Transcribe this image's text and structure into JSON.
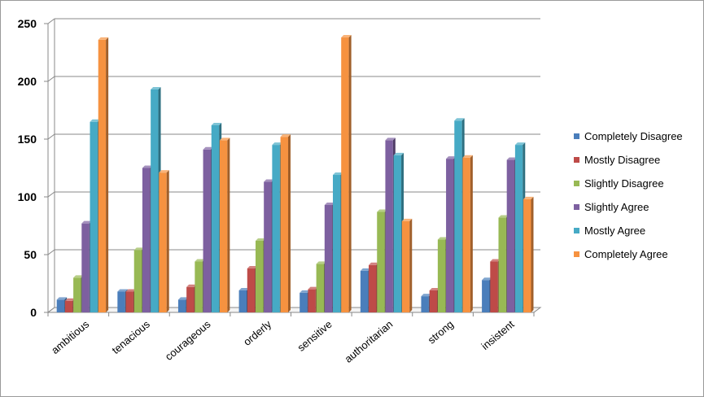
{
  "chart_data": {
    "type": "bar",
    "three_d": true,
    "categories": [
      "ambitious",
      "tenacious",
      "courageous",
      "orderly",
      "sensitive",
      "authoritarian",
      "strong",
      "insistent"
    ],
    "ylim": [
      0,
      250
    ],
    "yticks": [
      0,
      50,
      100,
      150,
      200,
      250
    ],
    "grid": true,
    "legend_position": "right",
    "series": [
      {
        "name": "Completely Disagree",
        "color": "#4A7EBB",
        "values": [
          11,
          18,
          11,
          19,
          17,
          36,
          14,
          28
        ]
      },
      {
        "name": "Mostly Disagree",
        "color": "#BE4B48",
        "values": [
          10,
          18,
          22,
          38,
          20,
          41,
          19,
          44
        ]
      },
      {
        "name": "Slightly Disagree",
        "color": "#98B954",
        "values": [
          30,
          54,
          44,
          62,
          42,
          87,
          63,
          82
        ]
      },
      {
        "name": "Slightly Agree",
        "color": "#7D60A0",
        "values": [
          77,
          125,
          141,
          113,
          93,
          149,
          133,
          132
        ]
      },
      {
        "name": "Mostly Agree",
        "color": "#46AAC5",
        "values": [
          165,
          193,
          162,
          145,
          119,
          136,
          166,
          145
        ]
      },
      {
        "name": "Completely Agree",
        "color": "#F69240",
        "values": [
          236,
          121,
          149,
          152,
          238,
          79,
          134,
          98
        ]
      }
    ]
  }
}
